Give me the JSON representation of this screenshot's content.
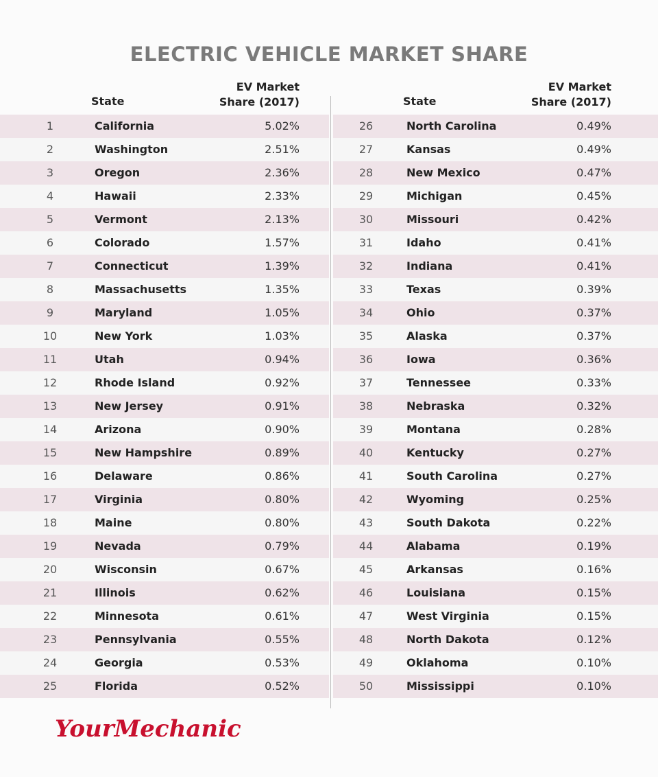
{
  "title": "ELECTRIC VEHICLE MARKET SHARE",
  "tables": [
    {
      "headers": [
        "State",
        "EV Market Share (2017)"
      ],
      "rows": [
        [
          "1",
          "California",
          "5.02%"
        ],
        [
          "2",
          "Washington",
          "2.51%"
        ],
        [
          "3",
          "Oregon",
          "2.36%"
        ],
        [
          "4",
          "Hawaii",
          "2.33%"
        ],
        [
          "5",
          "Vermont",
          "2.13%"
        ],
        [
          "6",
          "Colorado",
          "1.57%"
        ],
        [
          "7",
          "Connecticut",
          "1.39%"
        ],
        [
          "8",
          "Massachusetts",
          "1.35%"
        ],
        [
          "9",
          "Maryland",
          "1.05%"
        ],
        [
          "10",
          "New York",
          "1.03%"
        ],
        [
          "11",
          "Utah",
          "0.94%"
        ],
        [
          "12",
          "Rhode Island",
          "0.92%"
        ],
        [
          "13",
          "New Jersey",
          "0.91%"
        ],
        [
          "14",
          "Arizona",
          "0.90%"
        ],
        [
          "15",
          "New Hampshire",
          "0.89%"
        ],
        [
          "16",
          "Delaware",
          "0.86%"
        ],
        [
          "17",
          "Virginia",
          "0.80%"
        ],
        [
          "18",
          "Maine",
          "0.80%"
        ],
        [
          "19",
          "Nevada",
          "0.79%"
        ],
        [
          "20",
          "Wisconsin",
          "0.67%"
        ],
        [
          "21",
          "Illinois",
          "0.62%"
        ],
        [
          "22",
          "Minnesota",
          "0.61%"
        ],
        [
          "23",
          "Pennsylvania",
          "0.55%"
        ],
        [
          "24",
          "Georgia",
          "0.53%"
        ],
        [
          "25",
          "Florida",
          "0.52%"
        ]
      ]
    },
    {
      "headers": [
        "State",
        "EV Market Share (2017)"
      ],
      "rows": [
        [
          "26",
          "North Carolina",
          "0.49%"
        ],
        [
          "27",
          "Kansas",
          "0.49%"
        ],
        [
          "28",
          "New Mexico",
          "0.47%"
        ],
        [
          "29",
          "Michigan",
          "0.45%"
        ],
        [
          "30",
          "Missouri",
          "0.42%"
        ],
        [
          "31",
          "Idaho",
          "0.41%"
        ],
        [
          "32",
          "Indiana",
          "0.41%"
        ],
        [
          "33",
          "Texas",
          "0.39%"
        ],
        [
          "34",
          "Ohio",
          "0.37%"
        ],
        [
          "35",
          "Alaska",
          "0.37%"
        ],
        [
          "36",
          "Iowa",
          "0.36%"
        ],
        [
          "37",
          "Tennessee",
          "0.33%"
        ],
        [
          "38",
          "Nebraska",
          "0.32%"
        ],
        [
          "39",
          "Montana",
          "0.28%"
        ],
        [
          "40",
          "Kentucky",
          "0.27%"
        ],
        [
          "41",
          "South Carolina",
          "0.27%"
        ],
        [
          "42",
          "Wyoming",
          "0.25%"
        ],
        [
          "43",
          "South Dakota",
          "0.22%"
        ],
        [
          "44",
          "Alabama",
          "0.19%"
        ],
        [
          "45",
          "Arkansas",
          "0.16%"
        ],
        [
          "46",
          "Louisiana",
          "0.15%"
        ],
        [
          "47",
          "West Virginia",
          "0.15%"
        ],
        [
          "48",
          "North Dakota",
          "0.12%"
        ],
        [
          "49",
          "Oklahoma",
          "0.10%"
        ],
        [
          "50",
          "Mississippi",
          "0.10%"
        ]
      ]
    }
  ],
  "logo": "YourMechanic"
}
